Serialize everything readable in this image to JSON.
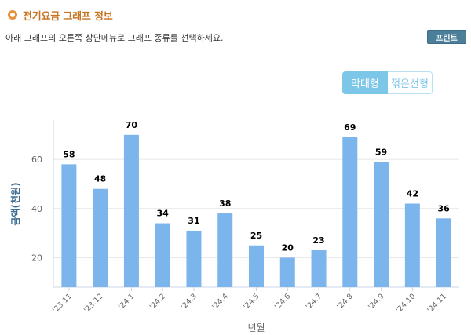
{
  "header": {
    "title": "전기요금 그래프 정보"
  },
  "description": "아래 그래프의 오른쪽 상단메뉴로 그래프 종류를 선택하세요.",
  "print_label": "프린트",
  "chart_types": [
    {
      "label": "막대형",
      "active": true
    },
    {
      "label": "꺾은선형",
      "active": false
    }
  ],
  "colors": {
    "bar": "#7cb5ec",
    "accent": "#c8731f",
    "button": "#4a7e99",
    "toggle": "#7cc6e8"
  },
  "chart_data": {
    "type": "bar",
    "categories": [
      "'23.11",
      "'23.12",
      "'24.1",
      "'24.2",
      "'24.3",
      "'24.4",
      "'24.5",
      "'24.6",
      "'24.7",
      "'24.8",
      "'24.9",
      "'24.10",
      "'24.11"
    ],
    "series": [
      {
        "values": [
          58,
          48,
          70,
          34,
          31,
          38,
          25,
          20,
          23,
          69,
          59,
          42,
          36
        ]
      }
    ],
    "xlabel": "년월",
    "ylabel": "금액(천원)",
    "yticks": [
      20,
      40,
      60
    ],
    "ylim": [
      8,
      76
    ],
    "grid": true,
    "data_labels": true
  }
}
